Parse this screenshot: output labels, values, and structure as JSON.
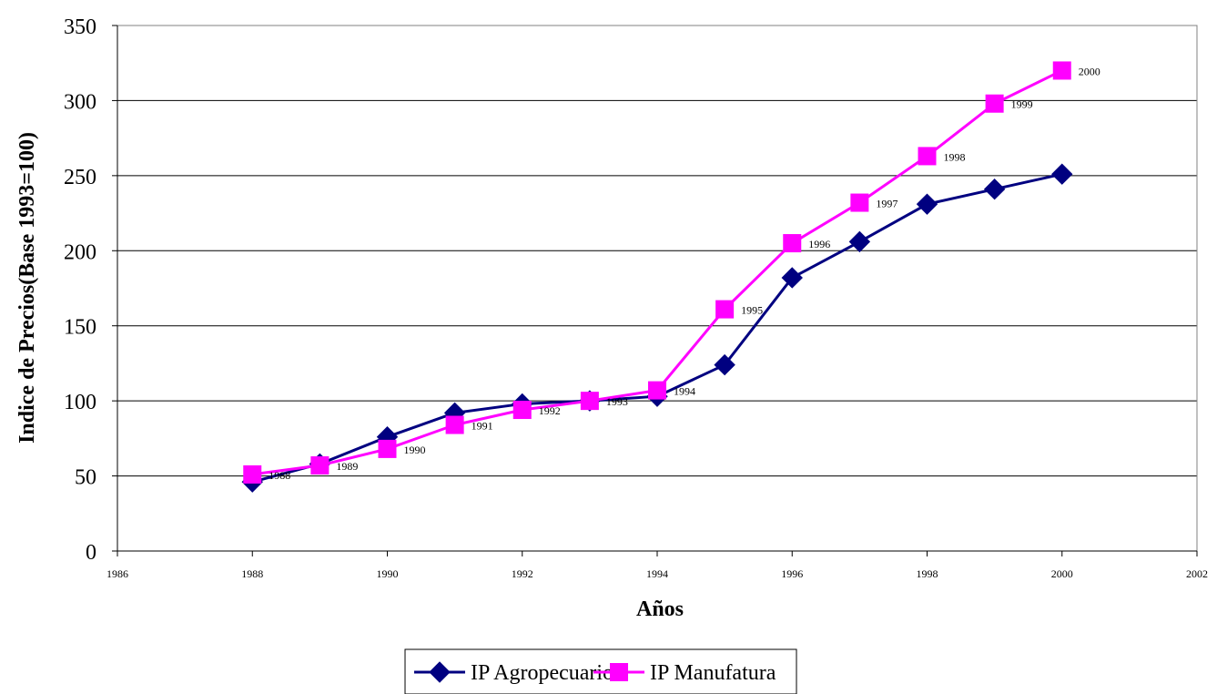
{
  "chart_data": {
    "type": "line",
    "title": "",
    "xlabel": "Años",
    "ylabel": "Indice de Precios(Base 1993=100)",
    "xlim": [
      1986,
      2002
    ],
    "ylim": [
      0,
      350
    ],
    "x_ticks": [
      "1986",
      "1988",
      "1990",
      "1992",
      "1994",
      "1996",
      "1998",
      "2000",
      "2002"
    ],
    "y_ticks": [
      "0",
      "50",
      "100",
      "150",
      "200",
      "250",
      "300",
      "350"
    ],
    "grid": "horizontal",
    "legend_position": "bottom",
    "x": [
      1988,
      1989,
      1990,
      1991,
      1992,
      1993,
      1994,
      1995,
      1996,
      1997,
      1998,
      1999,
      2000
    ],
    "point_labels": [
      "1988",
      "1989",
      "1990",
      "1991",
      "1992",
      "1993",
      "1994",
      "1995",
      "1996",
      "1997",
      "1998",
      "1999",
      "2000"
    ],
    "point_labels_series": "IP Manufatura",
    "series": [
      {
        "name": "IP Agropecuario",
        "color": "#000080",
        "marker": "diamond",
        "values": [
          46,
          58,
          76,
          92,
          98,
          100,
          103,
          124,
          182,
          206,
          231,
          241,
          251
        ]
      },
      {
        "name": "IP Manufatura",
        "color": "#ff00ff",
        "marker": "square",
        "values": [
          51,
          57,
          68,
          84,
          94,
          100,
          107,
          161,
          205,
          232,
          263,
          298,
          320
        ]
      }
    ]
  }
}
